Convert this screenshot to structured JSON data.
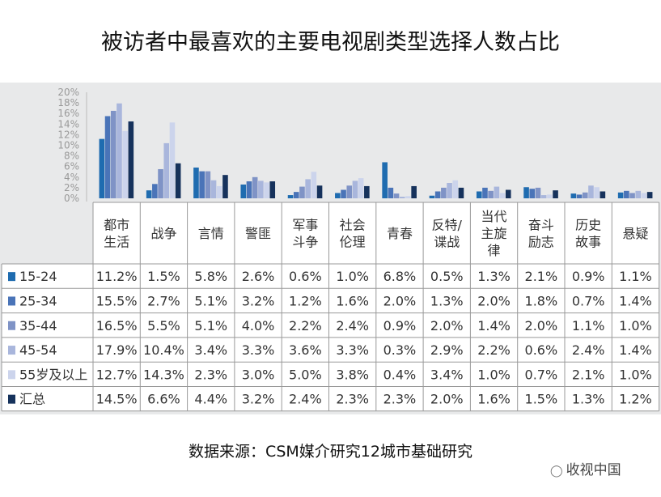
{
  "page": {
    "title": "被访者中最喜欢的主要电视剧类型选择人数占比",
    "source": "数据来源：CSM媒介研究12城市基础研究",
    "watermark": "收视中国",
    "watermark_icon": "wechat-icon"
  },
  "chart_data": {
    "type": "bar",
    "title": "被访者中最喜欢的主要电视剧类型选择人数占比",
    "ylim": [
      0,
      20
    ],
    "yticks": [
      "0%",
      "2%",
      "4%",
      "6%",
      "8%",
      "10%",
      "12%",
      "14%",
      "16%",
      "18%",
      "20%"
    ],
    "grid": false,
    "legend": "table-left",
    "categories": [
      "都市\n生活",
      "战争",
      "言情",
      "警匪",
      "军事\n斗争",
      "社会\n伦理",
      "青春",
      "反特/\n谍战",
      "当代\n主旋\n律",
      "奋斗\n励志",
      "历史\n故事",
      "悬疑"
    ],
    "series": [
      {
        "name": "15-24",
        "color": "#1f6cb0",
        "values": [
          11.2,
          1.5,
          5.8,
          2.6,
          0.6,
          1.0,
          6.8,
          0.5,
          1.3,
          2.1,
          0.9,
          1.1
        ],
        "labels": [
          "11.2%",
          "1.5%",
          "5.8%",
          "2.6%",
          "0.6%",
          "1.0%",
          "6.8%",
          "0.5%",
          "1.3%",
          "2.1%",
          "0.9%",
          "1.1%"
        ]
      },
      {
        "name": "25-34",
        "color": "#4a74b8",
        "values": [
          15.5,
          2.7,
          5.1,
          3.2,
          1.2,
          1.6,
          2.0,
          1.3,
          2.0,
          1.8,
          0.7,
          1.4
        ],
        "labels": [
          "15.5%",
          "2.7%",
          "5.1%",
          "3.2%",
          "1.2%",
          "1.6%",
          "2.0%",
          "1.3%",
          "2.0%",
          "1.8%",
          "0.7%",
          "1.4%"
        ]
      },
      {
        "name": "35-44",
        "color": "#7f93c6",
        "values": [
          16.5,
          5.5,
          5.1,
          4.0,
          2.2,
          2.4,
          0.9,
          2.0,
          1.4,
          2.0,
          1.1,
          1.0
        ],
        "labels": [
          "16.5%",
          "5.5%",
          "5.1%",
          "4.0%",
          "2.2%",
          "2.4%",
          "0.9%",
          "2.0%",
          "1.4%",
          "2.0%",
          "1.1%",
          "1.0%"
        ]
      },
      {
        "name": "45-54",
        "color": "#a9b6dc",
        "values": [
          17.9,
          10.4,
          3.4,
          3.3,
          3.6,
          3.3,
          0.3,
          2.9,
          2.2,
          0.6,
          2.4,
          1.4
        ],
        "labels": [
          "17.9%",
          "10.4%",
          "3.4%",
          "3.3%",
          "3.6%",
          "3.3%",
          "0.3%",
          "2.9%",
          "2.2%",
          "0.6%",
          "2.4%",
          "1.4%"
        ]
      },
      {
        "name": "55岁及以上",
        "color": "#ccd4ec",
        "values": [
          12.7,
          14.3,
          2.3,
          3.0,
          5.0,
          3.8,
          0.4,
          3.4,
          1.0,
          0.7,
          2.1,
          1.0
        ],
        "labels": [
          "12.7%",
          "14.3%",
          "2.3%",
          "3.0%",
          "5.0%",
          "3.8%",
          "0.4%",
          "3.4%",
          "1.0%",
          "0.7%",
          "2.1%",
          "1.0%"
        ]
      },
      {
        "name": "汇总",
        "color": "#16325c",
        "values": [
          14.5,
          6.6,
          4.4,
          3.2,
          2.4,
          2.3,
          2.3,
          2.0,
          1.6,
          1.5,
          1.3,
          1.2
        ],
        "labels": [
          "14.5%",
          "6.6%",
          "4.4%",
          "3.2%",
          "2.4%",
          "2.3%",
          "2.3%",
          "2.0%",
          "1.6%",
          "1.5%",
          "1.3%",
          "1.2%"
        ]
      }
    ]
  }
}
